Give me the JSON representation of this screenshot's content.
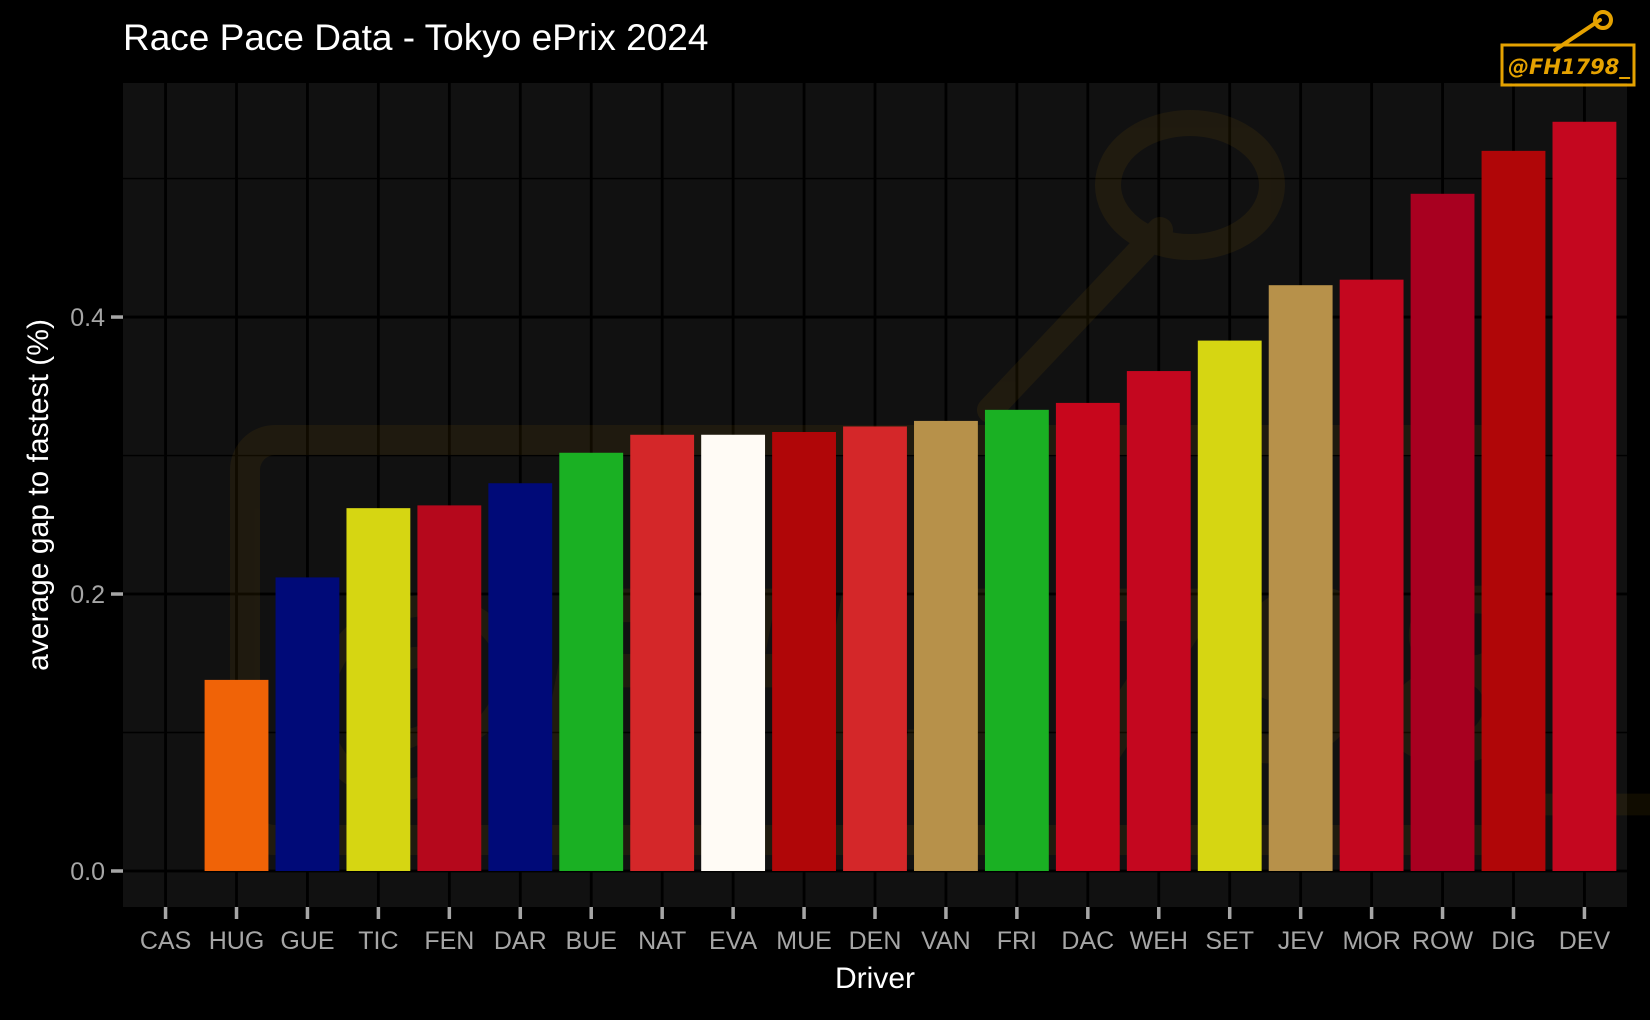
{
  "chart_data": {
    "type": "bar",
    "title": "Race Pace Data - Tokyo ePrix 2024",
    "xlabel": "Driver",
    "ylabel": "average gap to fastest (%)",
    "ylim": [
      -0.026,
      0.569
    ],
    "yticks": [
      {
        "value": 0.0,
        "label": "0.0"
      },
      {
        "value": 0.2,
        "label": "0.2"
      },
      {
        "value": 0.4,
        "label": "0.4"
      }
    ],
    "y_minor_gridlines": [
      0.1,
      0.3,
      0.5
    ],
    "grid": true,
    "categories": [
      "CAS",
      "HUG",
      "GUE",
      "TIC",
      "FEN",
      "DAR",
      "BUE",
      "NAT",
      "EVA",
      "MUE",
      "DEN",
      "VAN",
      "FRI",
      "DAC",
      "WEH",
      "SET",
      "JEV",
      "MOR",
      "ROW",
      "DIG",
      "DEV"
    ],
    "values": [
      0.0,
      0.138,
      0.212,
      0.262,
      0.264,
      0.28,
      0.302,
      0.315,
      0.315,
      0.317,
      0.321,
      0.325,
      0.333,
      0.338,
      0.361,
      0.383,
      0.423,
      0.427,
      0.489,
      0.52,
      0.541
    ],
    "colors": [
      "#ffffff",
      "#f06307",
      "#000a78",
      "#d6d612",
      "#b5081c",
      "#000a78",
      "#1ab023",
      "#d42729",
      "#fffbf5",
      "#b00608",
      "#d42729",
      "#b7914a",
      "#1ab023",
      "#c7061c",
      "#c4071f",
      "#d6d612",
      "#b7914a",
      "#c4071f",
      "#a80020",
      "#b00608",
      "#c4071f"
    ],
    "legend": "none"
  },
  "logo": {
    "text": "@FH1798_"
  },
  "theme": {
    "background": "#000000",
    "panel": "#111111",
    "accent": "#e5a200"
  }
}
